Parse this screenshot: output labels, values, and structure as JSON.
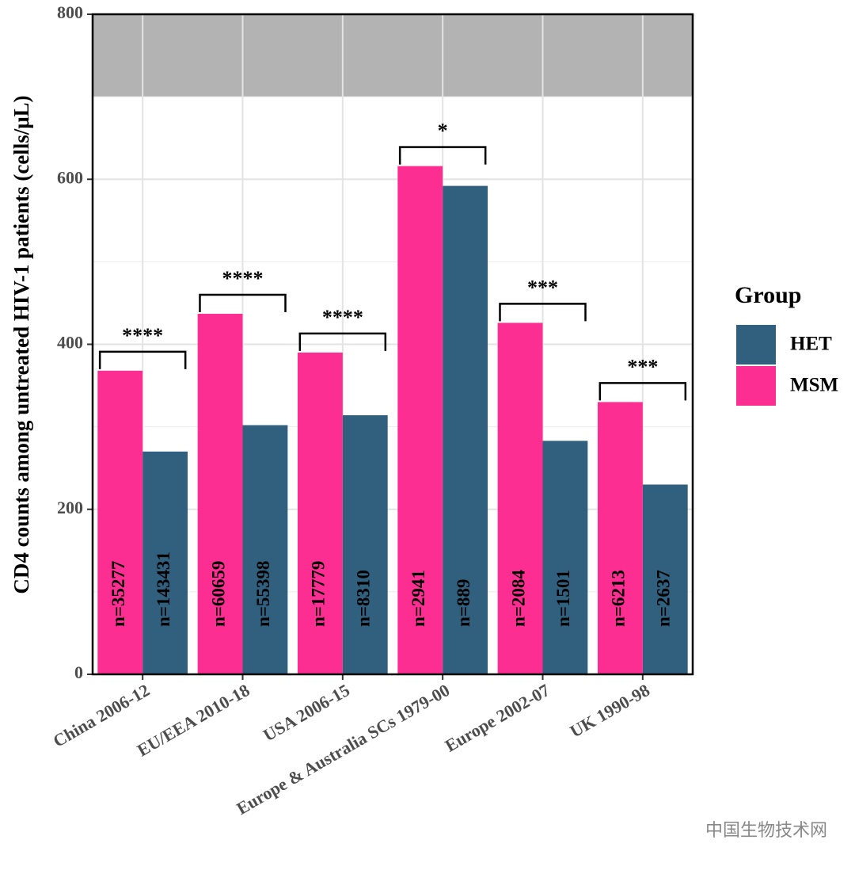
{
  "chart_data": {
    "type": "bar",
    "y_label": "CD4 counts among untreated HIV-1 patients (cells/μL)",
    "categories": [
      "China 2006-12",
      "EU/EEA 2010-18",
      "USA 2006-15",
      "Europe & Australia SCs 1979-00",
      "Europe 2002-07",
      "UK 1990-98"
    ],
    "series": [
      {
        "name": "HET",
        "color": "#31607f",
        "values": [
          270,
          302,
          314,
          592,
          283,
          230
        ],
        "n_labels": [
          "n=143431",
          "n=55398",
          "n=8310",
          "n=889",
          "n=1501",
          "n=2637"
        ]
      },
      {
        "name": "MSM",
        "color": "#fc2e92",
        "values": [
          368,
          437,
          390,
          616,
          426,
          330
        ],
        "n_labels": [
          "n=35277",
          "n=60659",
          "n=17779",
          "n=2941",
          "n=2084",
          "n=6213"
        ]
      }
    ],
    "significance": [
      "****",
      "****",
      "****",
      "*",
      "***",
      "***"
    ],
    "legend_title": "Group",
    "ylim": [
      0,
      800
    ],
    "yticks": [
      0,
      200,
      400,
      600,
      800
    ],
    "minor_yticks": [
      100,
      300,
      500,
      700
    ],
    "shaded_range": [
      700,
      800
    ],
    "shade_color": "#b3b3b3",
    "grid": true,
    "watermark": "中国生物技术网"
  }
}
